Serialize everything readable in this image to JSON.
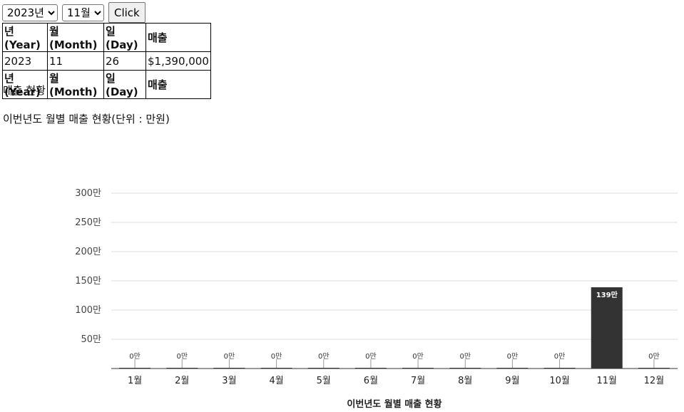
{
  "controls": {
    "year_selected": "2023년",
    "month_selected": "11월",
    "button_label": "Click"
  },
  "table": {
    "headers": [
      "년(Year)",
      "월(Month)",
      "일(Day)",
      "매출"
    ],
    "row": [
      "2023",
      "11",
      "26",
      "$1,390,000"
    ],
    "footer": [
      "년(Year)",
      "월(Month)",
      "일(Day)",
      "매출"
    ]
  },
  "status_label": "매출 현황",
  "chart_caption": "이번년도 월별 매출 현황(단위 : 만원)",
  "chart_data": {
    "type": "bar",
    "categories": [
      "1월",
      "2월",
      "3월",
      "4월",
      "5월",
      "6월",
      "7월",
      "8월",
      "9월",
      "10월",
      "11월",
      "12월"
    ],
    "values": [
      0,
      0,
      0,
      0,
      0,
      0,
      0,
      0,
      0,
      0,
      139,
      0
    ],
    "data_labels": [
      "0만",
      "0만",
      "0만",
      "0만",
      "0만",
      "0만",
      "0만",
      "0만",
      "0만",
      "0만",
      "139만",
      "0만"
    ],
    "yticks": [
      50,
      100,
      150,
      200,
      250,
      300
    ],
    "ytick_labels": [
      "50만",
      "100만",
      "150만",
      "200만",
      "250만",
      "300만"
    ],
    "ylim": [
      0,
      300
    ],
    "xlabel": "이번년도 월별 매출 현황",
    "grid": true,
    "bar_color": "#333333"
  }
}
